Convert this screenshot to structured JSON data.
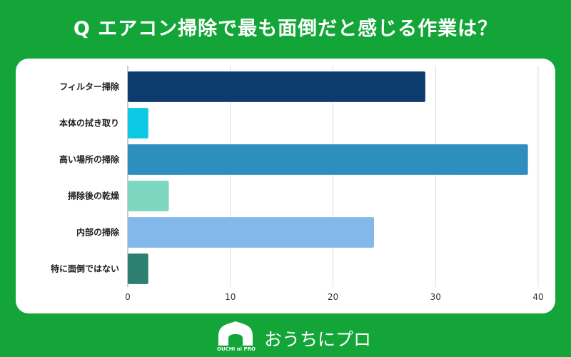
{
  "title": "Q エアコン掃除で最も面倒だと感じる作業は？",
  "brand": {
    "name": "おうちにプロ",
    "logo_text": "OUCHI ni PRO"
  },
  "chart_data": {
    "type": "bar",
    "orientation": "horizontal",
    "title": "Q エアコン掃除で最も面倒だと感じる作業は？",
    "categories": [
      "フィルター掃除",
      "本体の拭き取り",
      "高い場所の掃除",
      "掃除後の乾燥",
      "内部の掃除",
      "特に面倒ではない"
    ],
    "values": [
      29,
      2,
      39,
      4,
      24,
      2
    ],
    "colors": [
      "#0e3b6e",
      "#0dc9e3",
      "#2e8fbf",
      "#7dd6c0",
      "#82b8ea",
      "#2d8071"
    ],
    "xlim": [
      0,
      40
    ],
    "xticks": [
      0,
      10,
      20,
      30,
      40
    ],
    "grid": true,
    "xlabel": "",
    "ylabel": ""
  }
}
